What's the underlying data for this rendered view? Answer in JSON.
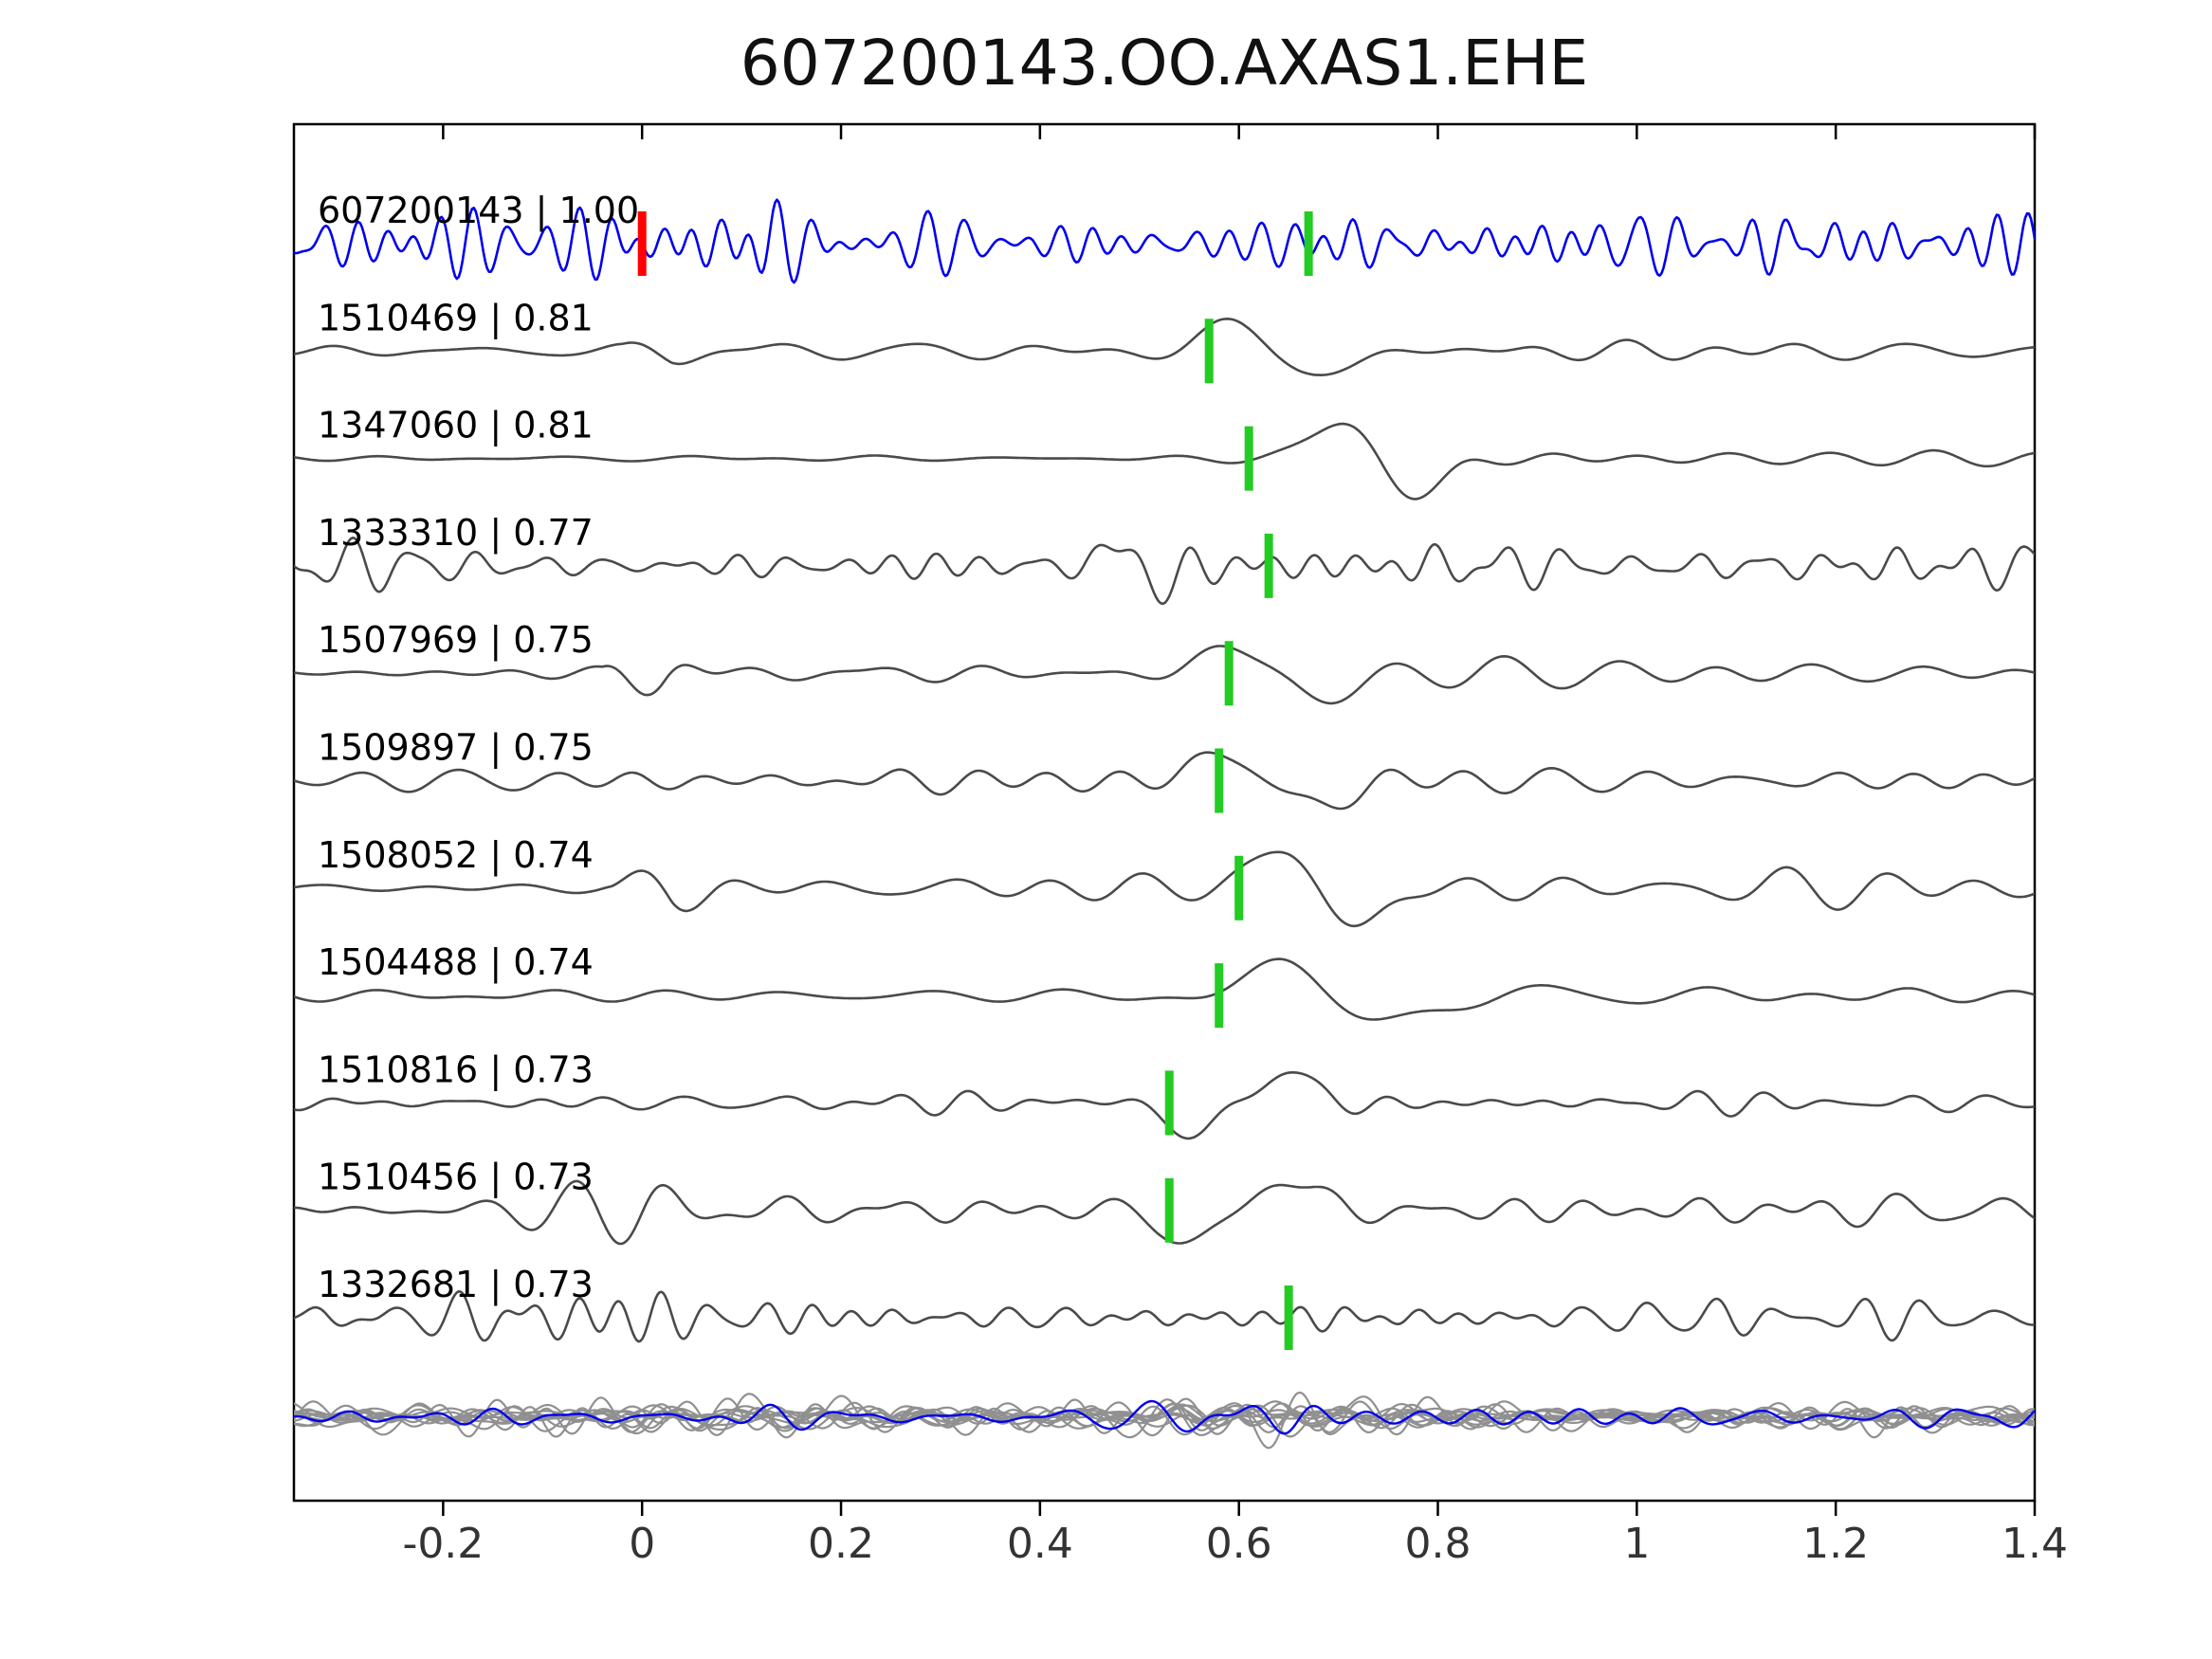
{
  "chart_data": {
    "type": "line",
    "title": "607200143.OO.AXAS1.EHE",
    "xlabel": "",
    "ylabel": "",
    "xlim": [
      -0.35,
      1.4
    ],
    "grid": false,
    "legend": null,
    "x_ticks": [
      {
        "v": -0.2,
        "label": "-0.2"
      },
      {
        "v": 0,
        "label": "0"
      },
      {
        "v": 0.2,
        "label": "0.2"
      },
      {
        "v": 0.4,
        "label": "0.4"
      },
      {
        "v": 0.6,
        "label": "0.6"
      },
      {
        "v": 0.8,
        "label": "0.8"
      },
      {
        "v": 1.0,
        "label": "1"
      },
      {
        "v": 1.2,
        "label": "1.2"
      },
      {
        "v": 1.4,
        "label": "1.4"
      }
    ],
    "colors": {
      "template_trace": "#0000ee",
      "match_trace": "#4a4a4a",
      "overlay_gray": "#909090",
      "pick_marker": "#22cc22",
      "origin_marker": "#ff0000",
      "axis": "#000000",
      "tick_label": "#333333",
      "label_text": "#000000"
    },
    "traces": [
      {
        "id": "607200143",
        "corr": "1.00",
        "label": "607200143 | 1.00",
        "color": "#0000ee",
        "picks": [
          {
            "x": 0.0,
            "color": "#ff0000"
          },
          {
            "x": 0.67,
            "color": "#22cc22"
          }
        ],
        "synth": {
          "seed": 11,
          "freq": [
            18,
            38
          ],
          "envelope": [
            [
              -0.35,
              36
            ],
            [
              0.08,
              40
            ],
            [
              0.12,
              55
            ],
            [
              0.16,
              40
            ],
            [
              1.4,
              38
            ]
          ],
          "pulse": null
        }
      },
      {
        "id": "1510469",
        "corr": "0.81",
        "label": "1510469 | 0.81",
        "color": "#4a4a4a",
        "picks": [
          {
            "x": 0.57,
            "color": "#22cc22"
          }
        ],
        "synth": {
          "seed": 22,
          "freq": [
            6,
            13
          ],
          "envelope": [
            [
              -0.35,
              7
            ],
            [
              -0.02,
              8
            ],
            [
              0.03,
              18
            ],
            [
              0.1,
              11
            ],
            [
              0.5,
              10
            ],
            [
              0.8,
              13
            ],
            [
              1.1,
              11
            ],
            [
              1.4,
              8
            ]
          ],
          "pulse": {
            "x": 0.64,
            "f": 4.5,
            "w": 0.085,
            "amp": -40
          }
        }
      },
      {
        "id": "1347060",
        "corr": "0.81",
        "label": "1347060 | 0.81",
        "color": "#4a4a4a",
        "picks": [
          {
            "x": 0.61,
            "color": "#22cc22"
          }
        ],
        "synth": {
          "seed": 33,
          "freq": [
            5,
            12
          ],
          "envelope": [
            [
              -0.35,
              3
            ],
            [
              0.1,
              3.5
            ],
            [
              0.45,
              4
            ],
            [
              0.58,
              6
            ],
            [
              0.75,
              10
            ],
            [
              0.95,
              12
            ],
            [
              1.2,
              9
            ],
            [
              1.4,
              8
            ]
          ],
          "pulse": {
            "x": 0.74,
            "f": 4.2,
            "w": 0.08,
            "amp": -52
          }
        }
      },
      {
        "id": "1333310",
        "corr": "0.77",
        "label": "1333310 | 0.77",
        "color": "#4a4a4a",
        "picks": [
          {
            "x": 0.63,
            "color": "#22cc22"
          }
        ],
        "synth": {
          "seed": 44,
          "freq": [
            12,
            26
          ],
          "envelope": [
            [
              -0.35,
              30
            ],
            [
              0.3,
              26
            ],
            [
              0.5,
              34
            ],
            [
              0.65,
              30
            ],
            [
              1.0,
              28
            ],
            [
              1.2,
              32
            ],
            [
              1.4,
              26
            ]
          ],
          "pulse": {
            "x": 0.5,
            "f": 8,
            "w": 0.045,
            "amp": -30
          }
        }
      },
      {
        "id": "1507969",
        "corr": "0.75",
        "label": "1507969 | 0.75",
        "color": "#4a4a4a",
        "picks": [
          {
            "x": 0.59,
            "color": "#22cc22"
          }
        ],
        "synth": {
          "seed": 55,
          "freq": [
            6,
            14
          ],
          "envelope": [
            [
              -0.35,
              9
            ],
            [
              -0.04,
              9
            ],
            [
              0.02,
              46
            ],
            [
              0.1,
              20
            ],
            [
              0.35,
              17
            ],
            [
              0.55,
              14
            ],
            [
              0.85,
              18
            ],
            [
              1.2,
              16
            ],
            [
              1.4,
              13
            ]
          ],
          "pulse": {
            "x": 0.64,
            "f": 4.2,
            "w": 0.08,
            "amp": -42
          }
        }
      },
      {
        "id": "1509897",
        "corr": "0.75",
        "label": "1509897 | 0.75",
        "color": "#4a4a4a",
        "picks": [
          {
            "x": 0.58,
            "color": "#22cc22"
          }
        ],
        "synth": {
          "seed": 66,
          "freq": [
            7,
            15
          ],
          "envelope": [
            [
              -0.35,
              12
            ],
            [
              0.0,
              24
            ],
            [
              0.12,
              16
            ],
            [
              0.5,
              13
            ],
            [
              0.8,
              15
            ],
            [
              1.1,
              20
            ],
            [
              1.3,
              22
            ],
            [
              1.4,
              18
            ]
          ],
          "pulse": {
            "x": 0.63,
            "f": 4.2,
            "w": 0.08,
            "amp": -42
          }
        }
      },
      {
        "id": "1508052",
        "corr": "0.74",
        "label": "1508052 | 0.74",
        "color": "#4a4a4a",
        "picks": [
          {
            "x": 0.6,
            "color": "#22cc22"
          }
        ],
        "synth": {
          "seed": 77,
          "freq": [
            6,
            13
          ],
          "envelope": [
            [
              -0.35,
              7
            ],
            [
              -0.03,
              7
            ],
            [
              0.03,
              46
            ],
            [
              0.12,
              22
            ],
            [
              0.4,
              19
            ],
            [
              0.6,
              16
            ],
            [
              0.9,
              22
            ],
            [
              1.15,
              24
            ],
            [
              1.4,
              18
            ]
          ],
          "pulse": {
            "x": 0.68,
            "f": 4.0,
            "w": 0.09,
            "amp": -46
          }
        }
      },
      {
        "id": "1504488",
        "corr": "0.74",
        "label": "1504488 | 0.74",
        "color": "#4a4a4a",
        "picks": [
          {
            "x": 0.58,
            "color": "#22cc22"
          }
        ],
        "synth": {
          "seed": 88,
          "freq": [
            5,
            11
          ],
          "envelope": [
            [
              -0.35,
              6
            ],
            [
              0.0,
              11
            ],
            [
              0.3,
              9
            ],
            [
              0.5,
              10
            ],
            [
              0.85,
              15
            ],
            [
              1.1,
              12
            ],
            [
              1.4,
              10
            ]
          ],
          "pulse": {
            "x": 0.7,
            "f": 3.8,
            "w": 0.1,
            "amp": -50
          }
        }
      },
      {
        "id": "1510816",
        "corr": "0.73",
        "label": "1510816 | 0.73",
        "color": "#4a4a4a",
        "picks": [
          {
            "x": 0.53,
            "color": "#22cc22"
          }
        ],
        "synth": {
          "seed": 99,
          "freq": [
            9,
            19
          ],
          "envelope": [
            [
              -0.35,
              13
            ],
            [
              0.3,
              13
            ],
            [
              0.55,
              16
            ],
            [
              0.8,
              20
            ],
            [
              1.05,
              16
            ],
            [
              1.4,
              12
            ]
          ],
          "pulse": {
            "x": 0.6,
            "f": 4.5,
            "w": 0.09,
            "amp": 42
          }
        }
      },
      {
        "id": "1510456",
        "corr": "0.73",
        "label": "1510456 | 0.73",
        "color": "#4a4a4a",
        "picks": [
          {
            "x": 0.53,
            "color": "#22cc22"
          }
        ],
        "synth": {
          "seed": 110,
          "freq": [
            8,
            17
          ],
          "envelope": [
            [
              -0.35,
              12
            ],
            [
              0.0,
              40
            ],
            [
              0.1,
              26
            ],
            [
              0.35,
              20
            ],
            [
              0.6,
              18
            ],
            [
              0.9,
              22
            ],
            [
              1.2,
              18
            ],
            [
              1.4,
              16
            ]
          ],
          "pulse": {
            "x": 0.6,
            "f": 4.2,
            "w": 0.09,
            "amp": 44
          }
        }
      },
      {
        "id": "1332681",
        "corr": "0.73",
        "label": "1332681 | 0.73",
        "color": "#4a4a4a",
        "picks": [
          {
            "x": 0.65,
            "color": "#22cc22"
          }
        ],
        "synth": {
          "seed": 121,
          "freq": [
            13,
            27
          ],
          "envelope": [
            [
              -0.35,
              36
            ],
            [
              0.05,
              30
            ],
            [
              0.25,
              22
            ],
            [
              0.5,
              24
            ],
            [
              0.75,
              22
            ],
            [
              1.0,
              26
            ],
            [
              1.25,
              24
            ],
            [
              1.4,
              22
            ]
          ],
          "pulse": null
        }
      }
    ],
    "overlay": {
      "count_gray": 11,
      "color_gray": "#909090",
      "color_blue": "#0000ee",
      "seed_base": 400,
      "blue_seed": 512,
      "freq": [
        9,
        22
      ],
      "envelope": [
        [
          -0.35,
          13
        ],
        [
          0.0,
          17
        ],
        [
          0.1,
          19
        ],
        [
          0.3,
          12
        ],
        [
          0.5,
          20
        ],
        [
          0.65,
          22
        ],
        [
          0.8,
          15
        ],
        [
          1.0,
          13
        ],
        [
          1.2,
          14
        ],
        [
          1.4,
          13
        ]
      ]
    }
  }
}
